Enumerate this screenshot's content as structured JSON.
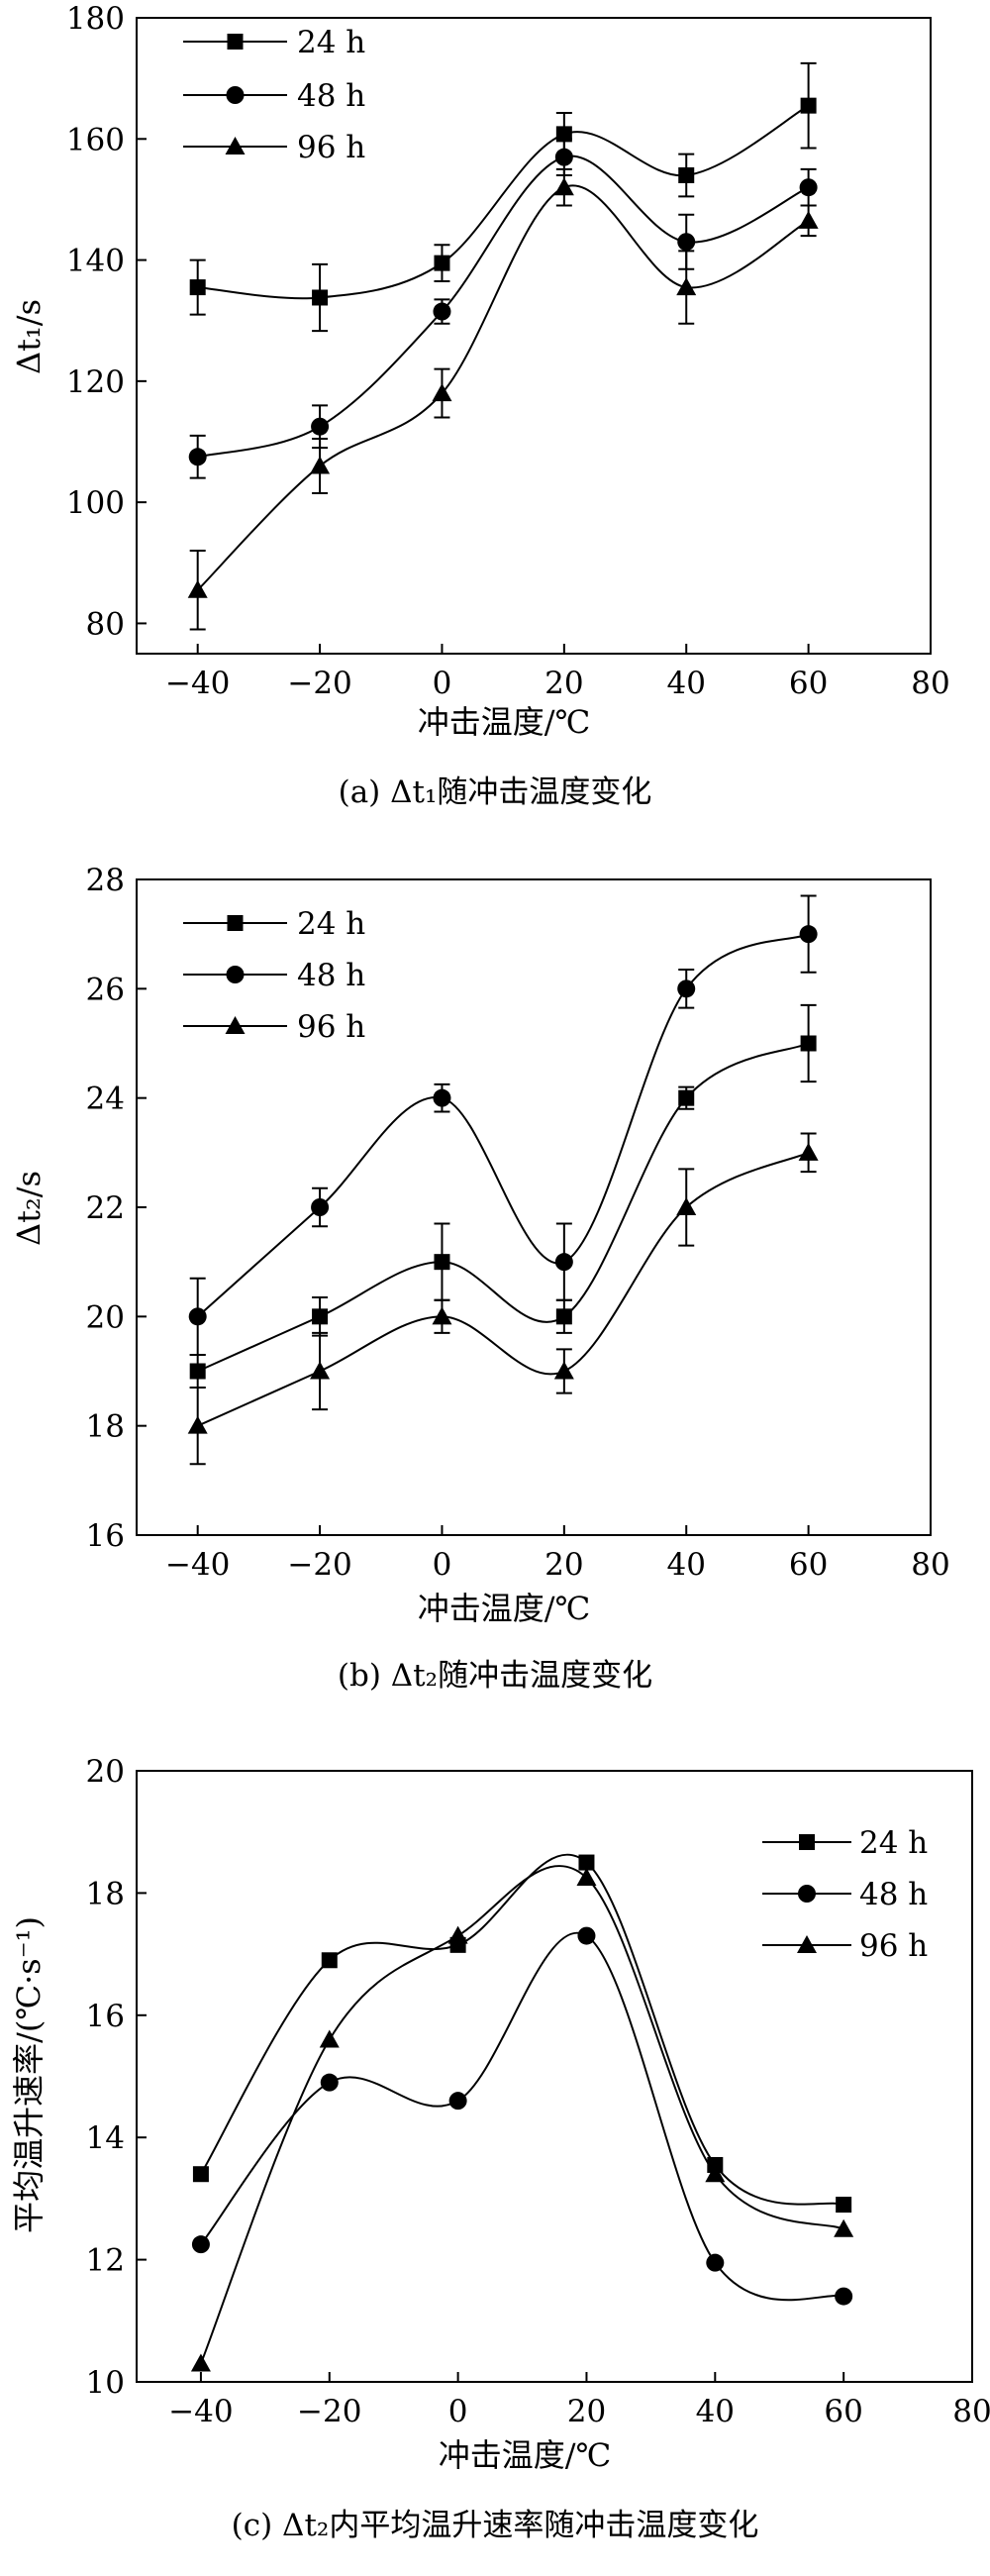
{
  "chart_data": [
    {
      "type": "line",
      "caption": "(a) Δt₁随冲击温度变化",
      "xlabel": "冲击温度/℃",
      "ylabel": "Δt₁/s",
      "xlim": [
        -50,
        80
      ],
      "ylim": [
        75,
        180
      ],
      "xticks": [
        -40,
        -20,
        0,
        20,
        40,
        60,
        80
      ],
      "yticks": [
        80,
        100,
        120,
        140,
        160,
        180
      ],
      "legend_position": "top-left",
      "x": [
        -40,
        -20,
        0,
        20,
        40,
        60
      ],
      "series": [
        {
          "name": "24 h",
          "marker": "square",
          "values": [
            135.5,
            133.8,
            139.5,
            160.8,
            154,
            165.5
          ],
          "errors": [
            4.5,
            5.5,
            3,
            3.5,
            3.5,
            7
          ]
        },
        {
          "name": "48 h",
          "marker": "circle",
          "values": [
            107.5,
            112.5,
            131.5,
            157,
            143,
            152
          ],
          "errors": [
            3.5,
            3.5,
            2,
            3,
            4.5,
            3
          ]
        },
        {
          "name": "96 h",
          "marker": "triangle",
          "values": [
            85.5,
            106,
            118,
            152,
            135.5,
            146.5
          ],
          "errors": [
            6.5,
            4.5,
            4,
            3,
            6,
            2.5
          ]
        }
      ]
    },
    {
      "type": "line",
      "caption": "(b) Δt₂随冲击温度变化",
      "xlabel": "冲击温度/℃",
      "ylabel": "Δt₂/s",
      "xlim": [
        -50,
        80
      ],
      "ylim": [
        16,
        28
      ],
      "xticks": [
        -40,
        -20,
        0,
        20,
        40,
        60,
        80
      ],
      "yticks": [
        16,
        18,
        20,
        22,
        24,
        26,
        28
      ],
      "legend_position": "top-left",
      "x": [
        -40,
        -20,
        0,
        20,
        40,
        60
      ],
      "series": [
        {
          "name": "24 h",
          "marker": "square",
          "values": [
            19,
            20,
            21,
            20,
            24,
            25
          ],
          "errors": [
            0.3,
            0.35,
            0.7,
            0.3,
            0.2,
            0.7
          ]
        },
        {
          "name": "48 h",
          "marker": "circle",
          "values": [
            20,
            22,
            24,
            21,
            26,
            27
          ],
          "errors": [
            0.7,
            0.35,
            0.25,
            0.7,
            0.35,
            0.7
          ]
        },
        {
          "name": "96 h",
          "marker": "triangle",
          "values": [
            18,
            19,
            20,
            19,
            22,
            23
          ],
          "errors": [
            0.7,
            0.7,
            0.3,
            0.4,
            0.7,
            0.35
          ]
        }
      ]
    },
    {
      "type": "line",
      "caption": "(c) Δt₂内平均温升速率随冲击温度变化",
      "xlabel": "冲击温度/℃",
      "ylabel": "平均温升速率/(℃·s⁻¹)",
      "xlim": [
        -50,
        80
      ],
      "ylim": [
        10,
        20
      ],
      "xticks": [
        -40,
        -20,
        0,
        20,
        40,
        60,
        80
      ],
      "yticks": [
        10,
        12,
        14,
        16,
        18,
        20
      ],
      "legend_position": "top-right",
      "x": [
        -40,
        -20,
        0,
        20,
        40,
        60
      ],
      "series": [
        {
          "name": "24 h",
          "marker": "square",
          "values": [
            13.4,
            16.9,
            17.15,
            18.5,
            13.55,
            12.9
          ]
        },
        {
          "name": "48 h",
          "marker": "circle",
          "values": [
            12.25,
            14.9,
            14.6,
            17.3,
            11.95,
            11.4
          ]
        },
        {
          "name": "96 h",
          "marker": "triangle",
          "values": [
            10.3,
            15.6,
            17.3,
            18.25,
            13.4,
            12.5
          ]
        }
      ]
    }
  ]
}
